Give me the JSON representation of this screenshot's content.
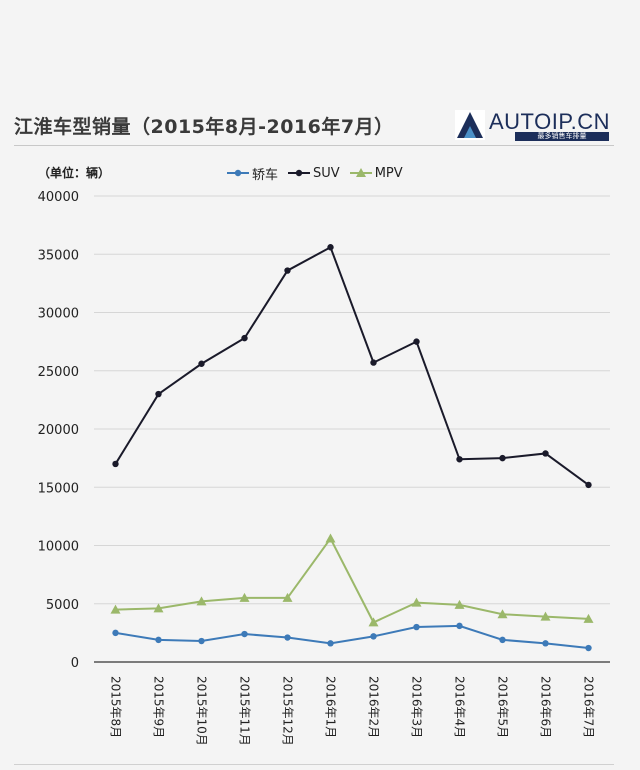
{
  "title": "江淮车型销量（2015年8月-2016年7月）",
  "logo": {
    "text": "AUTOIP.CN",
    "subtitle": "最多销售车排量"
  },
  "unit_label": "（单位：辆）",
  "chart_data": {
    "type": "line",
    "title": "江淮车型销量（2015年8月-2016年7月）",
    "ylabel": "（单位：辆）",
    "ylim": [
      0,
      40000
    ],
    "yticks": [
      0,
      5000,
      10000,
      15000,
      20000,
      25000,
      30000,
      35000,
      40000
    ],
    "grid": true,
    "legend": "top",
    "categories": [
      "2015年8月",
      "2015年9月",
      "2015年10月",
      "2015年11月",
      "2015年12月",
      "2016年1月",
      "2016年2月",
      "2016年3月",
      "2016年4月",
      "2016年5月",
      "2016年6月",
      "2016年7月"
    ],
    "series": [
      {
        "name": "轿车",
        "color": "#3d7ab8",
        "marker": "circle",
        "values": [
          2500,
          1900,
          1800,
          2400,
          2100,
          1600,
          2200,
          3000,
          3100,
          1900,
          1600,
          1200
        ]
      },
      {
        "name": "SUV",
        "color": "#1a1a2a",
        "marker": "circle",
        "values": [
          17000,
          23000,
          25600,
          27800,
          33600,
          35600,
          25700,
          27500,
          17400,
          17500,
          17900,
          15200
        ]
      },
      {
        "name": "MPV",
        "color": "#9bb86a",
        "marker": "triangle",
        "values": [
          4500,
          4600,
          5200,
          5500,
          5500,
          10600,
          3400,
          5100,
          4900,
          4100,
          3900,
          3700
        ]
      }
    ]
  }
}
